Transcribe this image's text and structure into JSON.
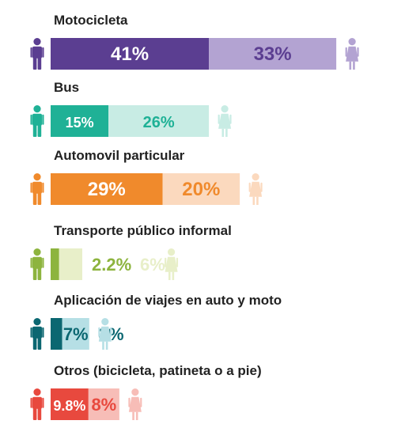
{
  "chart_data": {
    "type": "bar",
    "layout": "paired stacked horizontal bars, male (left icon) vs female (right icon)",
    "unit": "%",
    "categories": [
      "Motocicleta",
      "Bus",
      "Automovil particular",
      "Transporte público informal",
      "Aplicación de viajes en auto y moto",
      "Otros (bicicleta, patineta o a pie)"
    ],
    "series": [
      {
        "values": [
          41,
          15,
          29,
          2.2,
          3,
          9.8
        ]
      },
      {
        "values": [
          33,
          26,
          20,
          6,
          7,
          8
        ]
      }
    ],
    "value_labels": {
      "male": [
        "41%",
        "15%",
        "29%",
        "2.2%",
        "3%",
        "9.8%"
      ],
      "female": [
        "33%",
        "26%",
        "20%",
        "6%",
        "7%",
        "8%"
      ]
    },
    "colors": [
      {
        "dark": "#5b3e91",
        "light": "#b3a3d2"
      },
      {
        "dark": "#1fb196",
        "light": "#c8ece4"
      },
      {
        "dark": "#f08a2c",
        "light": "#fbd9be"
      },
      {
        "dark": "#8db43e",
        "light": "#e8efc9"
      },
      {
        "dark": "#0b6771",
        "light": "#b6dfe5"
      },
      {
        "dark": "#e8493e",
        "light": "#f7bdb7"
      }
    ],
    "icons": {
      "left": "male-person-icon",
      "right": "female-person-icon"
    }
  }
}
